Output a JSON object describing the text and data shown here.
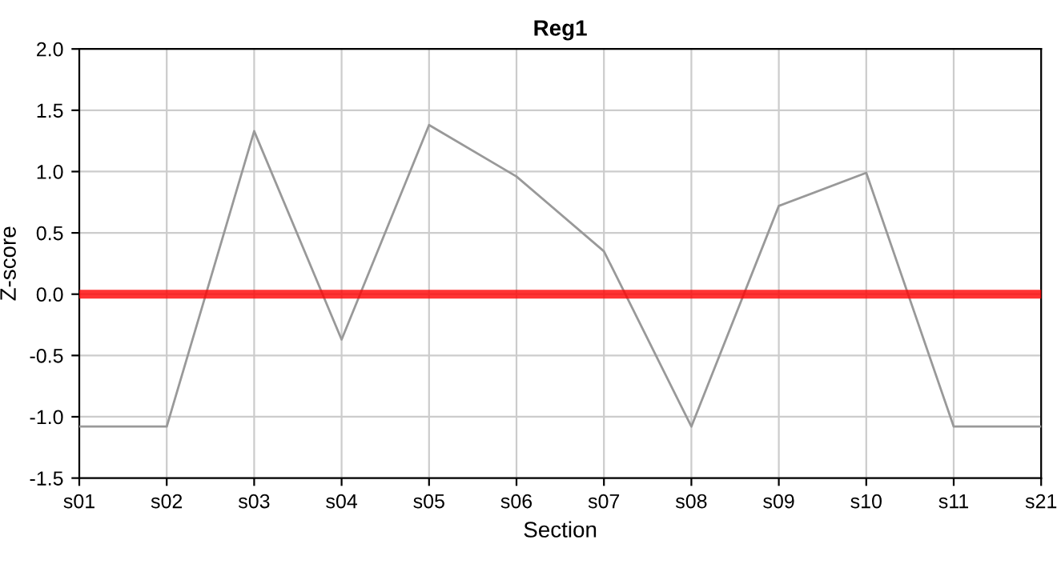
{
  "chart_data": {
    "type": "line",
    "title": "Reg1",
    "xlabel": "Section",
    "ylabel": "Z-score",
    "categories": [
      "s01",
      "s02",
      "s03",
      "s04",
      "s05",
      "s06",
      "s07",
      "s08",
      "s09",
      "s10",
      "s11",
      "s21"
    ],
    "series": [
      {
        "color": "#999999",
        "values": [
          -1.08,
          -1.08,
          1.33,
          -0.37,
          1.38,
          0.96,
          0.35,
          -1.08,
          0.72,
          0.99,
          -1.08,
          -1.08
        ]
      }
    ],
    "ylim": [
      -1.5,
      2.0
    ],
    "yticks": [
      {
        "value": -1.5,
        "label": "-1.5"
      },
      {
        "value": -1.0,
        "label": "-1.0"
      },
      {
        "value": -0.5,
        "label": "-0.5"
      },
      {
        "value": 0.0,
        "label": "0.0"
      },
      {
        "value": 0.5,
        "label": "0.5"
      },
      {
        "value": 1.0,
        "label": "1.0"
      },
      {
        "value": 1.5,
        "label": "1.5"
      },
      {
        "value": 2.0,
        "label": "2.0"
      }
    ],
    "ref_lines": [
      {
        "axis": "y",
        "value": 0,
        "color": "#ff0000"
      }
    ],
    "grid": true,
    "legend": false,
    "marker": "none",
    "line_style": "solid"
  }
}
